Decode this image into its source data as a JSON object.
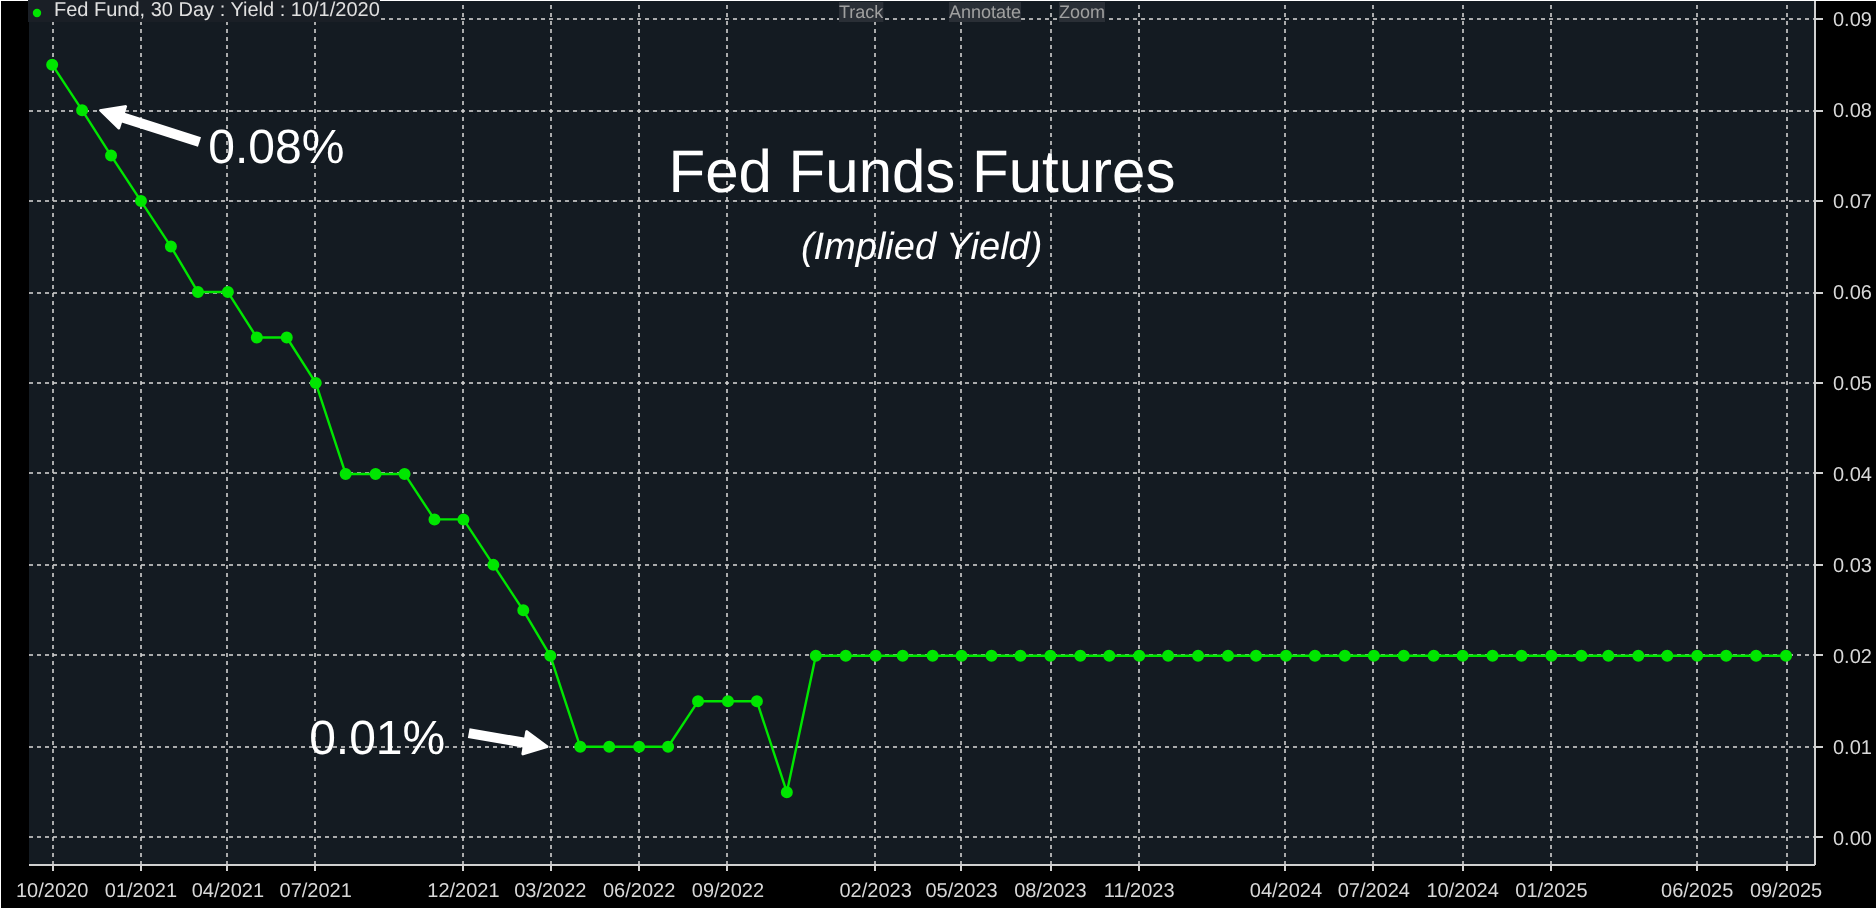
{
  "chart_data": {
    "type": "line",
    "title": "Fed Funds Futures",
    "subtitle": "(Implied Yield)",
    "x": [
      "2020-10",
      "2020-11",
      "2020-12",
      "2021-01",
      "2021-02",
      "2021-03",
      "2021-04",
      "2021-05",
      "2021-06",
      "2021-07",
      "2021-08",
      "2021-09",
      "2021-10",
      "2021-11",
      "2021-12",
      "2022-01",
      "2022-02",
      "2022-03",
      "2022-04",
      "2022-05",
      "2022-06",
      "2022-07",
      "2022-08",
      "2022-09",
      "2022-10",
      "2022-11",
      "2022-12",
      "2023-01",
      "2023-02",
      "2023-03",
      "2023-04",
      "2023-05",
      "2023-06",
      "2023-07",
      "2023-08",
      "2023-09",
      "2023-10",
      "2023-11",
      "2023-12",
      "2024-01",
      "2024-02",
      "2024-03",
      "2024-04",
      "2024-05",
      "2024-06",
      "2024-07",
      "2024-08",
      "2024-09",
      "2024-10",
      "2024-11",
      "2024-12",
      "2025-01",
      "2025-02",
      "2025-03",
      "2025-04",
      "2025-05",
      "2025-06",
      "2025-07",
      "2025-08",
      "2025-09"
    ],
    "series": [
      {
        "name": "Fed Fund, 30 Day : Yield : 10/1/2020",
        "color": "#00e600",
        "values": [
          0.085,
          0.08,
          0.075,
          0.07,
          0.065,
          0.06,
          0.06,
          0.055,
          0.055,
          0.05,
          0.04,
          0.04,
          0.04,
          0.035,
          0.035,
          0.03,
          0.025,
          0.02,
          0.01,
          0.01,
          0.01,
          0.01,
          0.015,
          0.015,
          0.015,
          0.005,
          0.02,
          0.02,
          0.02,
          0.02,
          0.02,
          0.02,
          0.02,
          0.02,
          0.02,
          0.02,
          0.02,
          0.02,
          0.02,
          0.02,
          0.02,
          0.02,
          0.02,
          0.02,
          0.02,
          0.02,
          0.02,
          0.02,
          0.02,
          0.02,
          0.02,
          0.02,
          0.02,
          0.02,
          0.02,
          0.02,
          0.02,
          0.02,
          0.02,
          0.02
        ]
      }
    ],
    "xlim": [
      "2020-09-07",
      "2025-10-01"
    ],
    "xticks": [
      {
        "value": "2020-10",
        "label": "10/2020"
      },
      {
        "value": "2021-01",
        "label": "01/2021"
      },
      {
        "value": "2021-04",
        "label": "04/2021"
      },
      {
        "value": "2021-07",
        "label": "07/2021"
      },
      {
        "value": "2021-12",
        "label": "12/2021"
      },
      {
        "value": "2022-03",
        "label": "03/2022"
      },
      {
        "value": "2022-06",
        "label": "06/2022"
      },
      {
        "value": "2022-09",
        "label": "09/2022"
      },
      {
        "value": "2023-02",
        "label": "02/2023"
      },
      {
        "value": "2023-05",
        "label": "05/2023"
      },
      {
        "value": "2023-08",
        "label": "08/2023"
      },
      {
        "value": "2023-11",
        "label": "11/2023"
      },
      {
        "value": "2024-04",
        "label": "04/2024"
      },
      {
        "value": "2024-07",
        "label": "07/2024"
      },
      {
        "value": "2024-10",
        "label": "10/2024"
      },
      {
        "value": "2025-01",
        "label": "01/2025"
      },
      {
        "value": "2025-06",
        "label": "06/2025"
      },
      {
        "value": "2025-09",
        "label": "09/2025"
      }
    ],
    "ylim": [
      -0.003,
      0.092
    ],
    "yticks": [
      {
        "value": 0,
        "label": "0.00"
      },
      {
        "value": 0.01,
        "label": "0.01"
      },
      {
        "value": 0.02,
        "label": "0.02"
      },
      {
        "value": 0.03,
        "label": "0.03"
      },
      {
        "value": 0.04,
        "label": "0.04"
      },
      {
        "value": 0.05,
        "label": "0.05"
      },
      {
        "value": 0.06,
        "label": "0.06"
      },
      {
        "value": 0.07,
        "label": "0.07"
      },
      {
        "value": 0.08,
        "label": "0.08"
      },
      {
        "value": 0.09,
        "label": "0.09"
      }
    ],
    "annotations": [
      {
        "text": "0.08%",
        "x": "2020-11",
        "y": 0.08
      },
      {
        "text": "0.01%",
        "x": "2022-04",
        "y": 0.01
      },
      "Track",
      "Annotate",
      "Zoom"
    ],
    "grid": true,
    "legend": "top left",
    "marker": "circle",
    "line_style": "solid"
  }
}
